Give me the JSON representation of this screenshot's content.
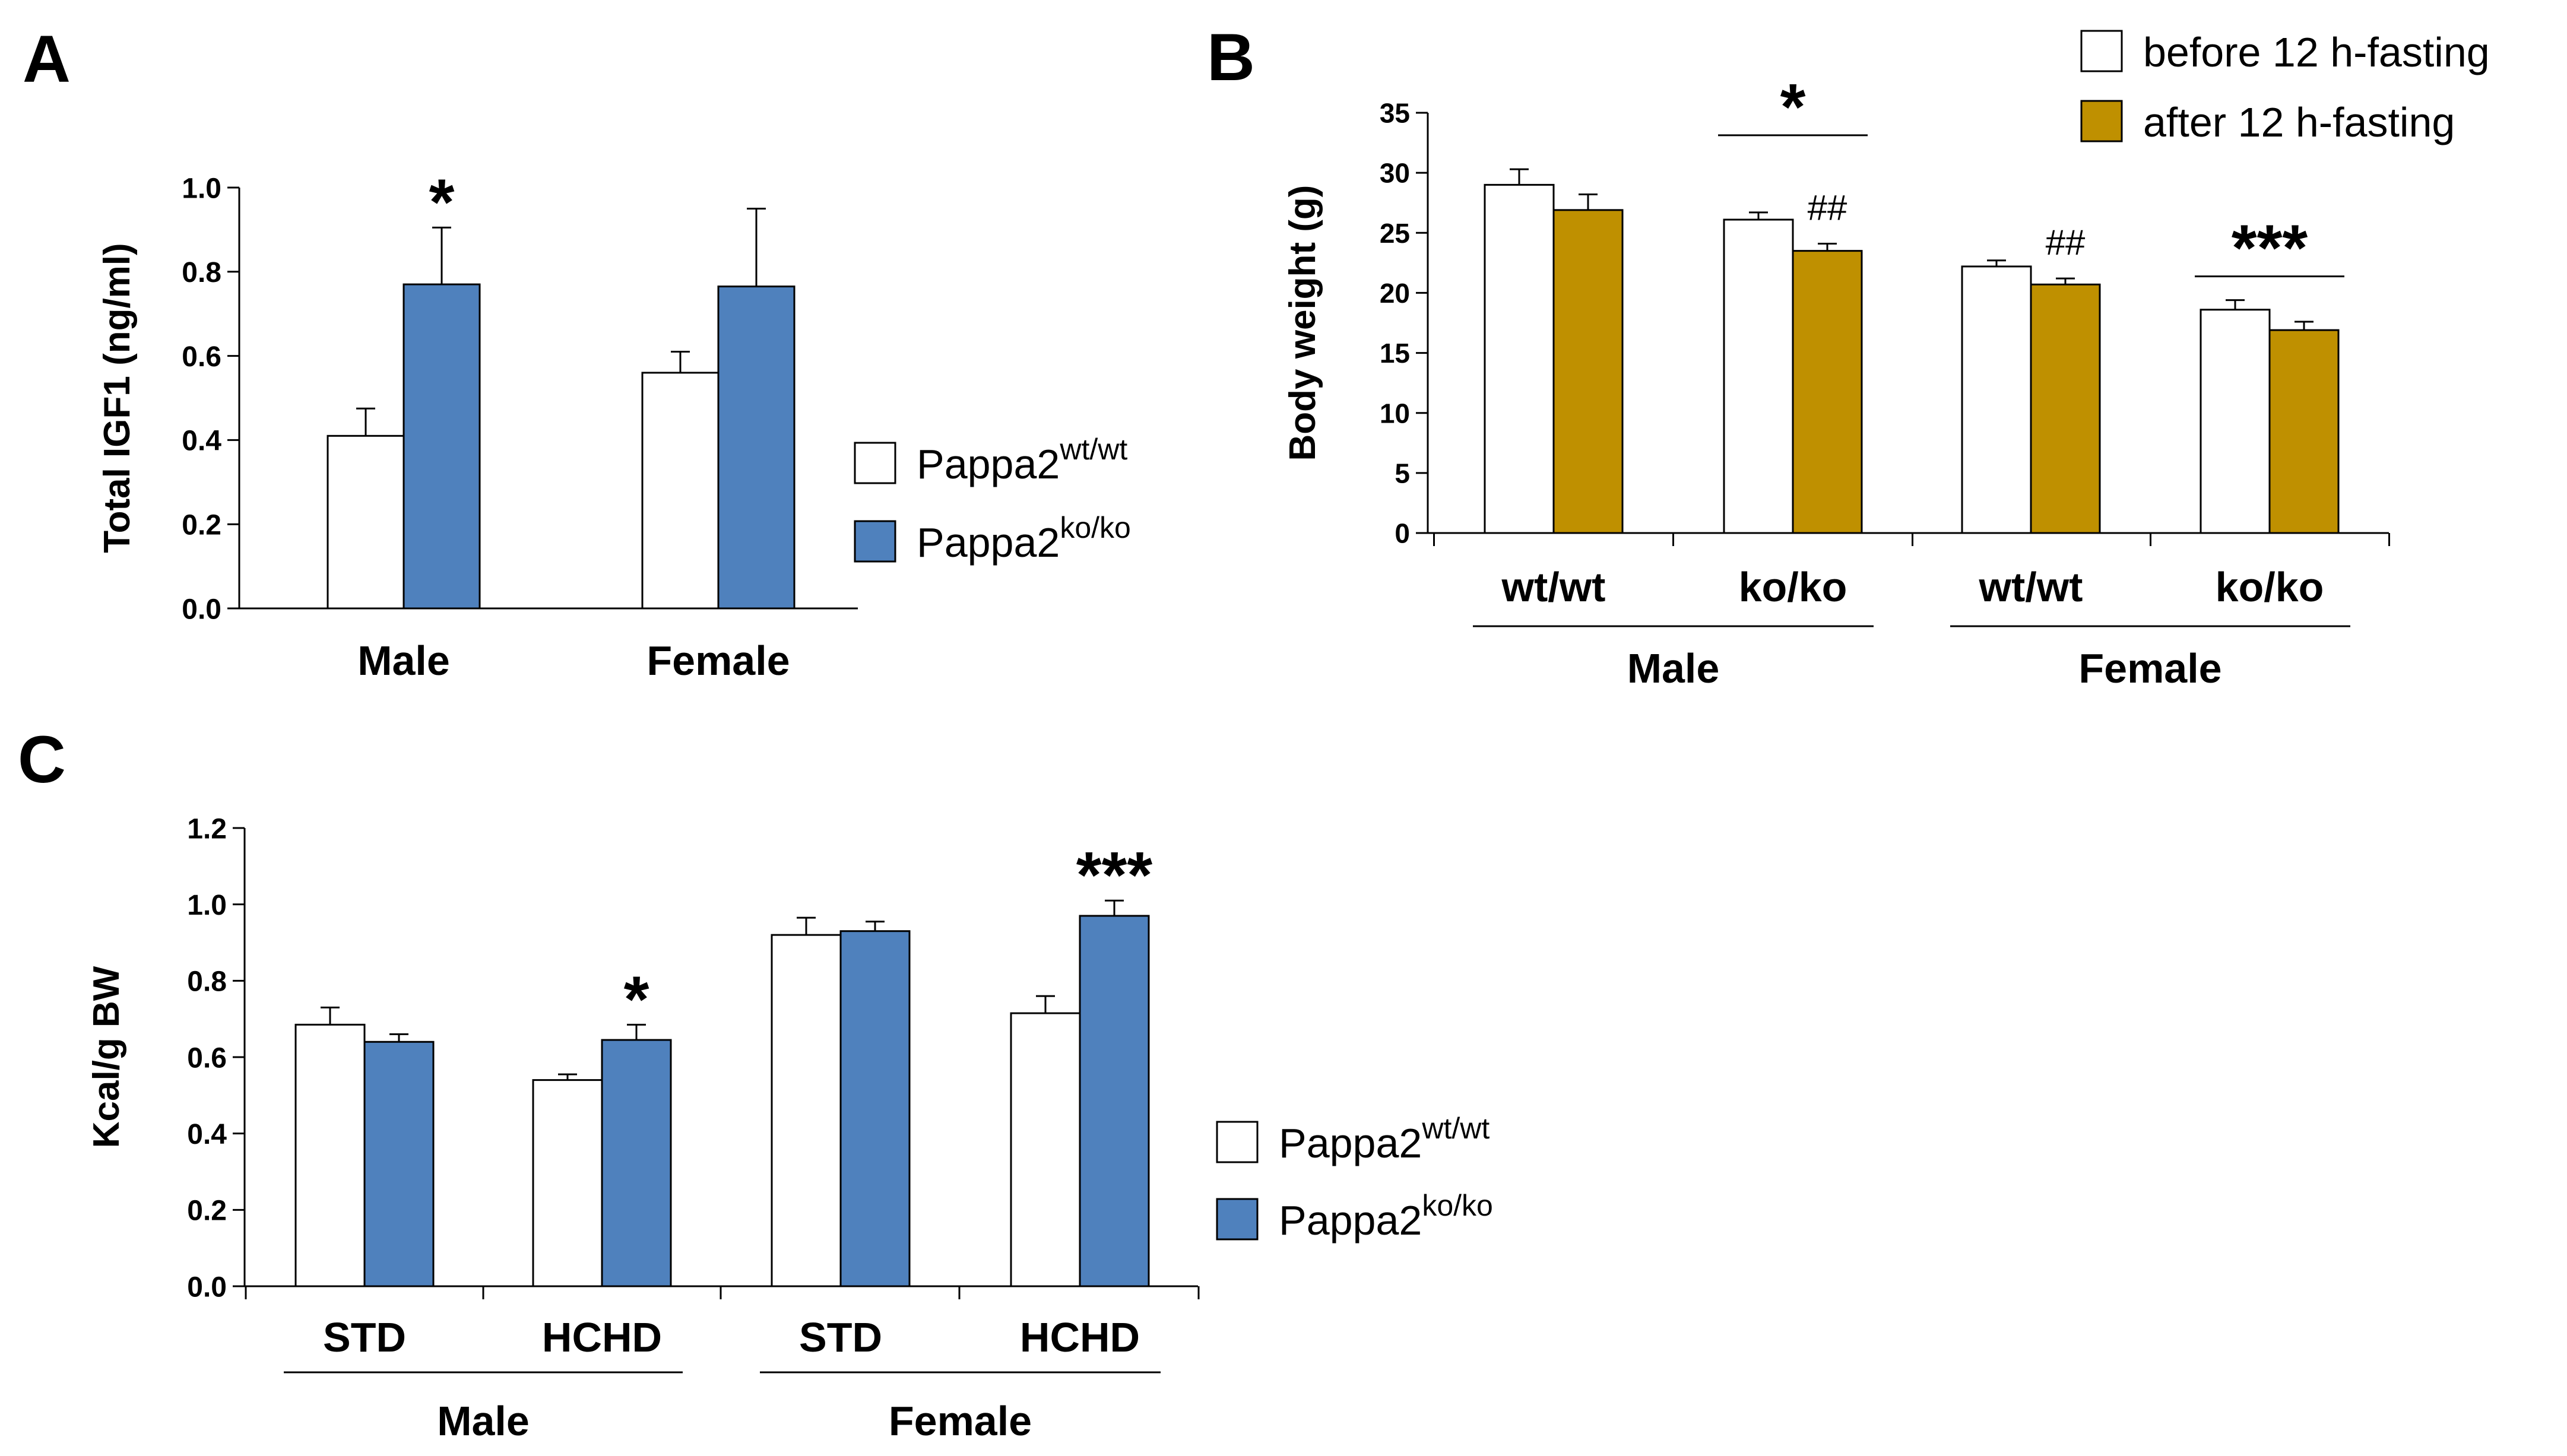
{
  "colors": {
    "white_bar": "#ffffff",
    "blue_bar": "#4f81bd",
    "gold_bar": "#bf9000",
    "stroke": "#000000"
  },
  "chart_data": [
    {
      "id": "A",
      "type": "bar",
      "panel_label": "A",
      "ylabel": "Total IGF1 (ng/ml)",
      "ylim": [
        0,
        1.0
      ],
      "yticks": [
        "0.0",
        "0.2",
        "0.4",
        "0.6",
        "0.8",
        "1.0"
      ],
      "categories": [
        "Male",
        "Female"
      ],
      "series": [
        {
          "name": "Pappa2",
          "sup": "wt/wt",
          "color": "#ffffff",
          "values": [
            0.41,
            0.56
          ],
          "errors": [
            0.065,
            0.05
          ]
        },
        {
          "name": "Pappa2",
          "sup": "ko/ko",
          "color": "#4f81bd",
          "values": [
            0.77,
            0.765
          ],
          "errors": [
            0.135,
            0.185
          ]
        }
      ],
      "annotations": [
        {
          "text": "*",
          "category": 0,
          "series": 1
        }
      ],
      "legend": {
        "items": [
          {
            "base": "Pappa2",
            "sup": "wt/wt",
            "color": "#ffffff"
          },
          {
            "base": "Pappa2",
            "sup": "ko/ko",
            "color": "#4f81bd"
          }
        ],
        "position": "right"
      }
    },
    {
      "id": "B",
      "type": "bar",
      "panel_label": "B",
      "ylabel": "Body weight (g)",
      "ylim": [
        0,
        35
      ],
      "yticks": [
        "0",
        "5",
        "10",
        "15",
        "20",
        "25",
        "30",
        "35"
      ],
      "categories": [
        "wt/wt",
        "ko/ko",
        "wt/wt",
        "ko/ko"
      ],
      "groups": [
        {
          "label": "Male",
          "categories": [
            0,
            1
          ]
        },
        {
          "label": "Female",
          "categories": [
            2,
            3
          ]
        }
      ],
      "series": [
        {
          "name": "before 12 h-fasting",
          "color": "#ffffff",
          "values": [
            29.0,
            26.1,
            22.2,
            18.6
          ],
          "errors": [
            1.3,
            0.6,
            0.5,
            0.8
          ]
        },
        {
          "name": "after 12 h-fasting",
          "color": "#bf9000",
          "values": [
            26.9,
            23.5,
            20.7,
            16.9
          ],
          "errors": [
            1.3,
            0.6,
            0.5,
            0.7
          ]
        }
      ],
      "annotations": [
        {
          "text": "*",
          "category": 1,
          "type": "bracket"
        },
        {
          "text": "##",
          "category": 1,
          "series": 1
        },
        {
          "text": "##",
          "category": 2,
          "series": 1
        },
        {
          "text": "***",
          "category": 3,
          "type": "bracket"
        }
      ],
      "legend": {
        "items": [
          {
            "base": "before 12 h-fasting",
            "color": "#ffffff"
          },
          {
            "base": "after 12 h-fasting",
            "color": "#bf9000"
          }
        ],
        "position": "top-right"
      }
    },
    {
      "id": "C",
      "type": "bar",
      "panel_label": "C",
      "ylabel": "Kcal/g BW",
      "ylim": [
        0,
        1.2
      ],
      "yticks": [
        "0.0",
        "0.2",
        "0.4",
        "0.6",
        "0.8",
        "1.0",
        "1.2"
      ],
      "categories": [
        "STD",
        "HCHD",
        "STD",
        "HCHD"
      ],
      "groups": [
        {
          "label": "Male",
          "categories": [
            0,
            1
          ]
        },
        {
          "label": "Female",
          "categories": [
            2,
            3
          ]
        }
      ],
      "series": [
        {
          "name": "Pappa2",
          "sup": "wt/wt",
          "color": "#ffffff",
          "values": [
            0.685,
            0.54,
            0.92,
            0.715
          ],
          "errors": [
            0.045,
            0.015,
            0.045,
            0.045
          ]
        },
        {
          "name": "Pappa2",
          "sup": "ko/ko",
          "color": "#4f81bd",
          "values": [
            0.64,
            0.645,
            0.93,
            0.97
          ],
          "errors": [
            0.02,
            0.04,
            0.025,
            0.04
          ]
        }
      ],
      "annotations": [
        {
          "text": "*",
          "category": 1,
          "series": 1
        },
        {
          "text": "***",
          "category": 3,
          "series": 1
        }
      ],
      "legend": {
        "items": [
          {
            "base": "Pappa2",
            "sup": "wt/wt",
            "color": "#ffffff"
          },
          {
            "base": "Pappa2",
            "sup": "ko/ko",
            "color": "#4f81bd"
          }
        ],
        "position": "right"
      }
    }
  ]
}
